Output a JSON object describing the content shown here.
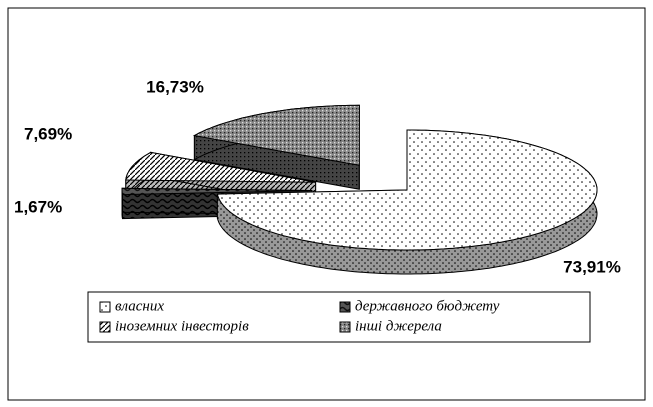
{
  "chart_data": {
    "type": "pie3d",
    "categories": [
      "власних",
      "державного бюджету",
      "іноземних інвесторів",
      "інші джерела"
    ],
    "values": [
      73.91,
      1.67,
      7.69,
      16.73
    ],
    "value_labels": [
      "73,91%",
      "1,67%",
      "7,69%",
      "16,73%"
    ]
  }
}
